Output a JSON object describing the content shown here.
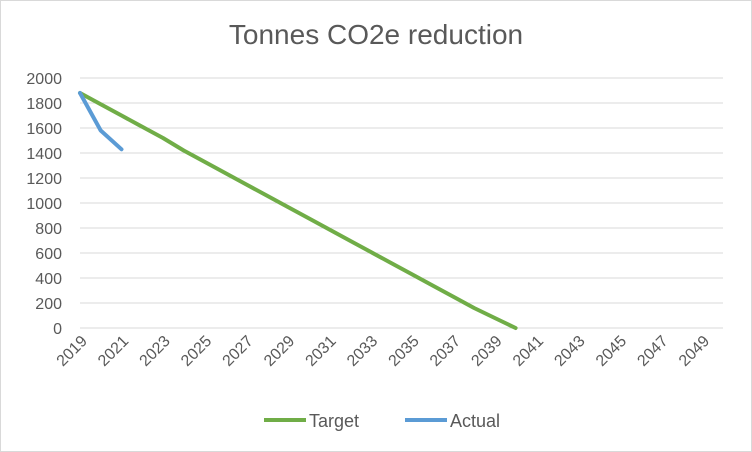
{
  "chart_data": {
    "type": "line",
    "title": "Tonnes CO2e reduction",
    "xlabel": "",
    "ylabel": "",
    "x": [
      2019,
      2020,
      2021,
      2022,
      2023,
      2024,
      2025,
      2026,
      2027,
      2028,
      2029,
      2030,
      2031,
      2032,
      2033,
      2034,
      2035,
      2036,
      2037,
      2038,
      2039,
      2040,
      2041,
      2042,
      2043,
      2044,
      2045,
      2046,
      2047,
      2048,
      2049,
      2050
    ],
    "x_tick_labels": [
      "2019",
      "2021",
      "2023",
      "2025",
      "2027",
      "2029",
      "2031",
      "2033",
      "2035",
      "2037",
      "2039",
      "2041",
      "2043",
      "2045",
      "2047",
      "2049"
    ],
    "y_tick_labels": [
      "0",
      "200",
      "400",
      "600",
      "800",
      "1000",
      "1200",
      "1400",
      "1600",
      "1800",
      "2000"
    ],
    "ylim": [
      0,
      2000
    ],
    "grid": true,
    "legend_position": "bottom",
    "series": [
      {
        "name": "Target",
        "color": "#70ad47",
        "x": [
          2019,
          2020,
          2021,
          2022,
          2023,
          2024,
          2025,
          2026,
          2027,
          2028,
          2029,
          2030,
          2031,
          2032,
          2033,
          2034,
          2035,
          2036,
          2037,
          2038,
          2039,
          2040
        ],
        "values": [
          1880,
          1790,
          1700,
          1610,
          1520,
          1420,
          1330,
          1240,
          1150,
          1060,
          970,
          880,
          790,
          700,
          610,
          520,
          430,
          340,
          250,
          160,
          80,
          0
        ]
      },
      {
        "name": "Actual",
        "color": "#5b9bd5",
        "x": [
          2019,
          2020,
          2021
        ],
        "values": [
          1880,
          1580,
          1430
        ]
      }
    ]
  }
}
